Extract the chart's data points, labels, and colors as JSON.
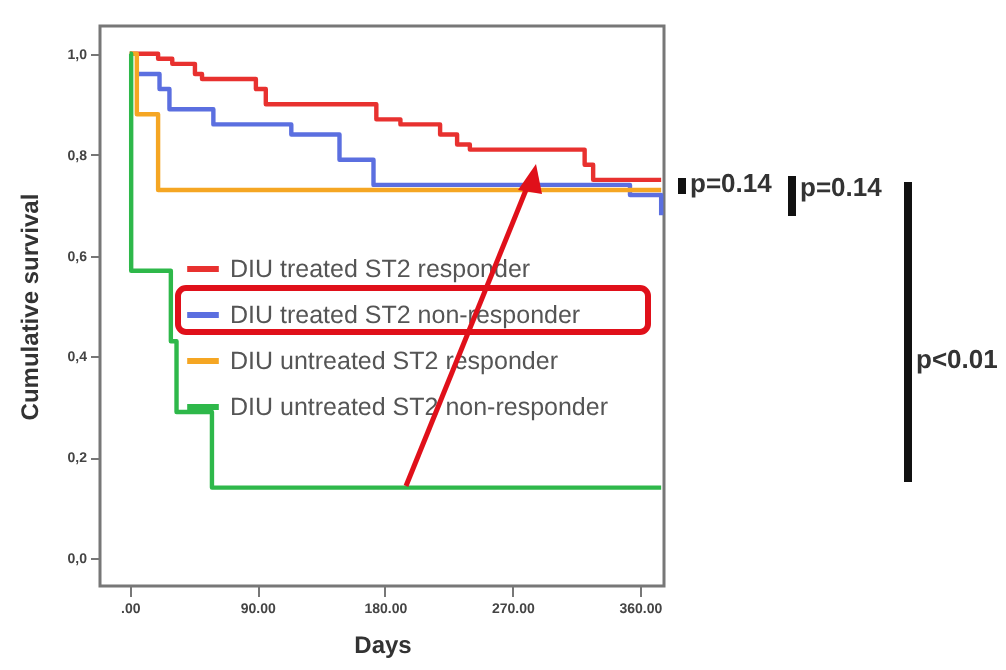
{
  "chart_data": {
    "type": "step",
    "xlabel": "Days",
    "ylabel": "Cumulative survival",
    "xlim": [
      -21,
      377
    ],
    "ylim": [
      -0.055,
      1.055
    ],
    "xticks": [
      {
        "value": 0,
        "label": ".00"
      },
      {
        "value": 90,
        "label": "90.00"
      },
      {
        "value": 180,
        "label": "180.00"
      },
      {
        "value": 270,
        "label": "270.00"
      },
      {
        "value": 360,
        "label": "360.00"
      }
    ],
    "yticks": [
      {
        "value": 0,
        "label": "0,0"
      },
      {
        "value": 0.2,
        "label": "0,2"
      },
      {
        "value": 0.4,
        "label": "0,4"
      },
      {
        "value": 0.6,
        "label": "0,6"
      },
      {
        "value": 0.8,
        "label": "0,8"
      },
      {
        "value": 1,
        "label": "1,0"
      }
    ],
    "legend": "left",
    "grid": false,
    "series": [
      {
        "name": "DIU treated ST2 responder",
        "color": "#e8312f",
        "x": [
          0,
          20,
          30,
          46,
          51,
          89,
          96,
          174,
          191,
          219,
          231,
          240,
          321,
          327,
          375
        ],
        "values": [
          1.0,
          0.99,
          0.98,
          0.96,
          0.95,
          0.93,
          0.9,
          0.87,
          0.86,
          0.84,
          0.82,
          0.81,
          0.78,
          0.75,
          0.75
        ]
      },
      {
        "name": "DIU treated ST2 non-responder",
        "color": "#5b6fe0",
        "x": [
          5,
          21,
          28,
          59,
          114,
          148,
          172,
          353,
          375
        ],
        "values": [
          0.96,
          0.93,
          0.89,
          0.86,
          0.84,
          0.79,
          0.74,
          0.72,
          0.68
        ]
      },
      {
        "name": "DIU untreated ST2 responder",
        "color": "#f5a623",
        "x": [
          0,
          5,
          20,
          375
        ],
        "values": [
          1.0,
          0.88,
          0.73,
          0.73
        ]
      },
      {
        "name": "DIU untreated ST2 non-responder",
        "color": "#2eb84a",
        "x": [
          0,
          1,
          29,
          33,
          58,
          375
        ],
        "values": [
          1.0,
          0.57,
          0.43,
          0.29,
          0.14,
          0.14
        ]
      }
    ],
    "annotations": [
      "p=0.14",
      "p=0.14",
      "p<0.01"
    ]
  }
}
